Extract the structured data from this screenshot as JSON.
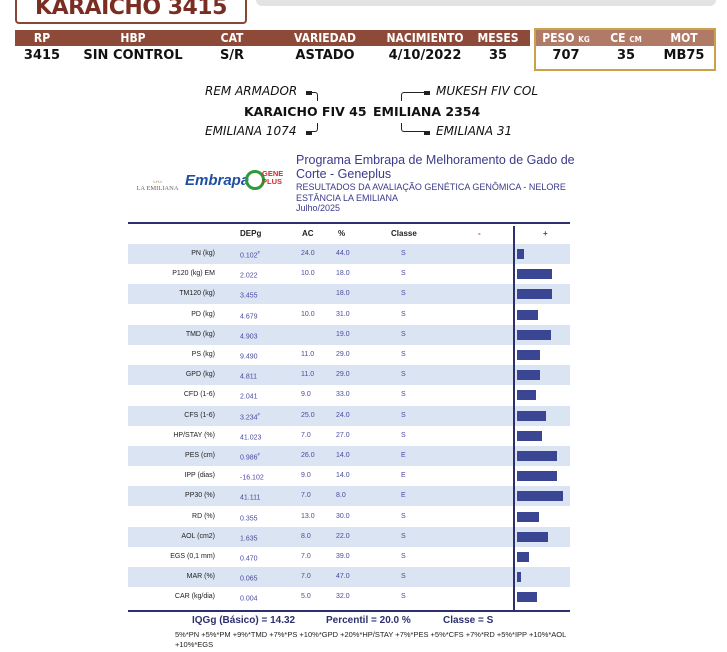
{
  "animal": {
    "name": "KARAICHO 3415"
  },
  "info": {
    "headers": [
      "RP",
      "HBP",
      "CAT",
      "VARIEDAD",
      "NACIMIENTO",
      "MESES"
    ],
    "values": [
      "3415",
      "SIN CONTROL",
      "S/R",
      "ASTADO",
      "4/10/2022",
      "35"
    ],
    "extra_headers": [
      {
        "label": "PESO",
        "unit": "KG"
      },
      {
        "label": "CE",
        "unit": "CM"
      },
      {
        "label": "MOT",
        "unit": ""
      }
    ],
    "extra_values": [
      "707",
      "35",
      "MB75"
    ]
  },
  "pedigree": {
    "sire": "KARAICHO FIV 45",
    "sire_sire": "REM ARMADOR",
    "sire_dam": "EMILIANA 1074",
    "dam": "EMILIANA 2354",
    "dam_sire": "MUKESH FIV COL",
    "dam_dam": "EMILIANA 31"
  },
  "logos": {
    "estancia": "LA EMILIANA",
    "embrapa": "Embrapa",
    "geneplus": "GENE PLUS"
  },
  "report": {
    "program": "Programa Embrapa de Melhoramento de Gado de Corte - Geneplus",
    "line1": "RESULTADOS DA AVALIAÇÃO GENÉTICA GENÔMICA - NELORE",
    "line2": "ESTÂNCIA LA EMILIANA",
    "date": "Julho/2025"
  },
  "table": {
    "headers": {
      "dep": "DEPg",
      "ac": "AC",
      "pct": "%",
      "classe": "Classe",
      "minus": "-",
      "plus": "+"
    },
    "bar_color": "#3a4593",
    "rows": [
      {
        "trait": "PN (kg)",
        "dep": "0.102",
        "sup": "F",
        "ac": "24.0",
        "pct": "44.0",
        "classe": "S"
      },
      {
        "trait": "P120 (kg) EM",
        "dep": "2.022",
        "sup": "",
        "ac": "10.0",
        "pct": "18.0",
        "classe": "S"
      },
      {
        "trait": "TM120 (kg)",
        "dep": "3.455",
        "sup": "",
        "ac": "",
        "pct": "18.0",
        "classe": "S"
      },
      {
        "trait": "PD (kg)",
        "dep": "4.679",
        "sup": "",
        "ac": "10.0",
        "pct": "31.0",
        "classe": "S"
      },
      {
        "trait": "TMD (kg)",
        "dep": "4.903",
        "sup": "",
        "ac": "",
        "pct": "19.0",
        "classe": "S"
      },
      {
        "trait": "PS (kg)",
        "dep": "9.490",
        "sup": "",
        "ac": "11.0",
        "pct": "29.0",
        "classe": "S"
      },
      {
        "trait": "GPD (kg)",
        "dep": "4.811",
        "sup": "",
        "ac": "11.0",
        "pct": "29.0",
        "classe": "S"
      },
      {
        "trait": "CFD (1-6)",
        "dep": "2.041",
        "sup": "",
        "ac": "9.0",
        "pct": "33.0",
        "classe": "S"
      },
      {
        "trait": "CFS (1-6)",
        "dep": "3.234",
        "sup": "F",
        "ac": "25.0",
        "pct": "24.0",
        "classe": "S"
      },
      {
        "trait": "HP/STAY (%)",
        "dep": "41.023",
        "sup": "",
        "ac": "7.0",
        "pct": "27.0",
        "classe": "S"
      },
      {
        "trait": "PES (cm)",
        "dep": "0.986",
        "sup": "F",
        "ac": "26.0",
        "pct": "14.0",
        "classe": "E"
      },
      {
        "trait": "IPP (dias)",
        "dep": "-16.102",
        "sup": "",
        "ac": "9.0",
        "pct": "14.0",
        "classe": "E"
      },
      {
        "trait": "PP30 (%)",
        "dep": "41.111",
        "sup": "",
        "ac": "7.0",
        "pct": "8.0",
        "classe": "E"
      },
      {
        "trait": "RD (%)",
        "dep": "0.355",
        "sup": "",
        "ac": "13.0",
        "pct": "30.0",
        "classe": "S"
      },
      {
        "trait": "AOL (cm2)",
        "dep": "1.635",
        "sup": "",
        "ac": "8.0",
        "pct": "22.0",
        "classe": "S"
      },
      {
        "trait": "EGS (0,1 mm)",
        "dep": "0.470",
        "sup": "",
        "ac": "7.0",
        "pct": "39.0",
        "classe": "S"
      },
      {
        "trait": "MAR (%)",
        "dep": "0.065",
        "sup": "",
        "ac": "7.0",
        "pct": "47.0",
        "classe": "S"
      },
      {
        "trait": "CAR (kg/dia)",
        "dep": "0.004",
        "sup": "",
        "ac": "5.0",
        "pct": "32.0",
        "classe": "S"
      }
    ]
  },
  "summary": {
    "iqg": "IQGg (Básico) = 14.32",
    "percentil": "Percentil = 20.0 %",
    "classe": "Classe = S",
    "formula": "5%*PN +5%*PM +9%*TMD +7%*PS +10%*GPD +20%*HP/STAY +7%*PES +5%*CFS +7%*RD +5%*IPP +10%*AOL +10%*EGS"
  }
}
